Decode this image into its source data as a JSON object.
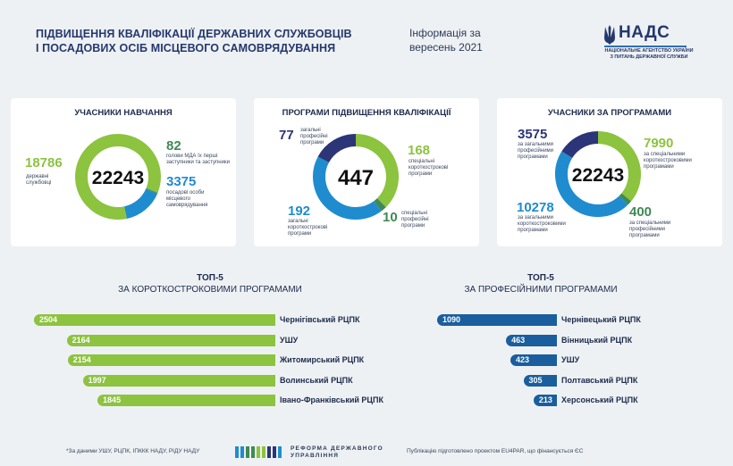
{
  "header": {
    "title_line1": "ПІДВИЩЕННЯ КВАЛІФІКАЦІЇ ДЕРЖАВНИХ СЛУЖБОВЦІВ",
    "title_line2": "І ПОСАДОВИХ ОСІБ МІСЦЕВОГО САМОВРЯДУВАННЯ",
    "info_line1": "Інформація за",
    "info_line2": "вересень 2021",
    "logo_name": "НАДС",
    "logo_sub1": "НАЦІОНАЛЬНЕ АГЕНТСТВО УКРАЇНИ",
    "logo_sub2": "З ПИТАНЬ ДЕРЖАВНОЇ СЛУЖБИ"
  },
  "colors": {
    "green": "#8cc33f",
    "dark_green": "#3f8a53",
    "blue": "#1f8ccf",
    "navy": "#2b3577",
    "light_track": "#d7dde3"
  },
  "chart_data": [
    {
      "type": "pie",
      "title": "УЧАСНИКИ НАВЧАННЯ",
      "total": "22243",
      "slices": [
        {
          "value": 18786,
          "label_value": "18786",
          "label": "державні службовці",
          "color": "#8cc33f"
        },
        {
          "value": 82,
          "label_value": "82",
          "label": "голови МДА їх перші заступники та заступники",
          "color": "#3f8a53"
        },
        {
          "value": 3375,
          "label_value": "3375",
          "label": "посадові особи місцевого самоврядування",
          "color": "#1f8ccf"
        }
      ]
    },
    {
      "type": "pie",
      "title": "ПРОГРАМИ ПІДВИЩЕННЯ КВАЛІФІКАЦІЇ",
      "total": "447",
      "slices": [
        {
          "value": 168,
          "label_value": "168",
          "label": "спеціальні короткострокові програми",
          "color": "#8cc33f"
        },
        {
          "value": 10,
          "label_value": "10",
          "label": "спеціальні професійні програми",
          "color": "#3f8a53"
        },
        {
          "value": 192,
          "label_value": "192",
          "label": "загальні короткострокові програми",
          "color": "#1f8ccf"
        },
        {
          "value": 77,
          "label_value": "77",
          "label": "загальні професійні програми",
          "color": "#2b3577"
        }
      ]
    },
    {
      "type": "pie",
      "title": "УЧАСНИКИ ЗА ПРОГРАМАМИ",
      "total": "22243",
      "slices": [
        {
          "value": 7990,
          "label_value": "7990",
          "label": "за спеціальними короткостроковими програмами",
          "color": "#8cc33f"
        },
        {
          "value": 400,
          "label_value": "400",
          "label": "за спеціальними професійними програмами",
          "color": "#3f8a53"
        },
        {
          "value": 10278,
          "label_value": "10278",
          "label": "за загальними короткостроковими програмами",
          "color": "#1f8ccf"
        },
        {
          "value": 3575,
          "label_value": "3575",
          "label": "за загальними професійними програмами",
          "color": "#2b3577"
        }
      ]
    },
    {
      "type": "bar",
      "title_line1": "ТОП-5",
      "title_line2": "ЗА КОРОТКОСТРОКОВИМИ ПРОГРАМАМИ",
      "color": "#8cc33f",
      "categories": [
        "Чернігівський РЦПК",
        "УШУ",
        "Житомирський РЦПК",
        "Волинський РЦПК",
        "Івано-Франківський РЦПК"
      ],
      "values": [
        2504,
        2164,
        2154,
        1997,
        1845
      ],
      "labels": [
        "2504",
        "2164",
        "2154",
        "1997",
        "1845"
      ]
    },
    {
      "type": "bar",
      "title_line1": "ТОП-5",
      "title_line2": "ЗА ПРОФЕСІЙНИМИ ПРОГРАМАМИ",
      "color": "#1a5e9e",
      "categories": [
        "Чернівецький РЦПК",
        "Вінницький РЦПК",
        "УШУ",
        "Полтавський РЦПК",
        "Херсонський РЦПК"
      ],
      "values": [
        1090,
        463,
        423,
        305,
        213
      ],
      "labels": [
        "1090",
        "463",
        "423",
        "305",
        "213"
      ]
    }
  ],
  "footer": {
    "note": "*За даними УШУ, РЦПК, ІПККК НАДУ, РІДУ НАДУ",
    "reform_line1": "РЕФОРМА ДЕРЖАВНОГО",
    "reform_line2": "УПРАВЛІННЯ",
    "funding": "Публікацію підготовлено проектом EU4PAR, що фінансується ЄС"
  }
}
